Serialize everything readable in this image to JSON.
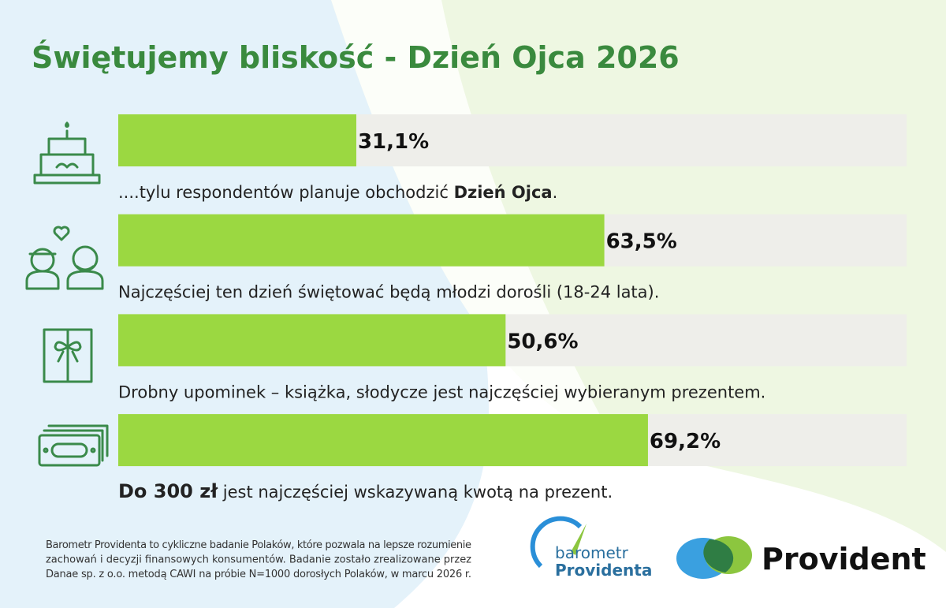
{
  "chart_data": {
    "type": "bar",
    "orientation": "horizontal",
    "title": "Świętujemy bliskość - Dzień Ojca 2026",
    "values": [
      31.1,
      63.5,
      50.6,
      69.2
    ],
    "value_labels": [
      "31,1%",
      "63,5%",
      "50,6%",
      "69,2%"
    ],
    "descriptions": [
      [
        {
          "text": "....tylu respondentów planuje obchodzić ",
          "bold": false
        },
        {
          "text": "Dzień Ojca",
          "bold": true
        },
        {
          "text": ".",
          "bold": false
        }
      ],
      [
        {
          "text": "Najczęściej ten dzień świętować będą młodzi dorośli (18-24 lata).",
          "bold": false
        }
      ],
      [
        {
          "text": "Drobny upominek – książka, słodycze jest najczęściej wybieranym prezentem.",
          "bold": false
        }
      ],
      [
        {
          "text": "Do 300 zł",
          "bold": true
        },
        {
          "text": " jest najczęściej wskazywaną kwotą na prezent.",
          "bold": false
        }
      ]
    ],
    "color": "#9bd841",
    "track_color": "#eeeeea",
    "xlim": [
      0,
      100
    ]
  },
  "footer": {
    "note_lines": [
      "Barometr Providenta to cykliczne badanie Polaków, które pozwala na lepsze rozumienie",
      "zachowań i decyzji finansowych konsumentów. Badanie zostało zrealizowane przez",
      "Danae sp. z o.o. metodą CAWI na próbie N=1000 dorosłych Polaków, w marcu 2026 r."
    ],
    "logo_small": [
      "barometr",
      "Providenta"
    ],
    "logo_main": "Provident"
  }
}
